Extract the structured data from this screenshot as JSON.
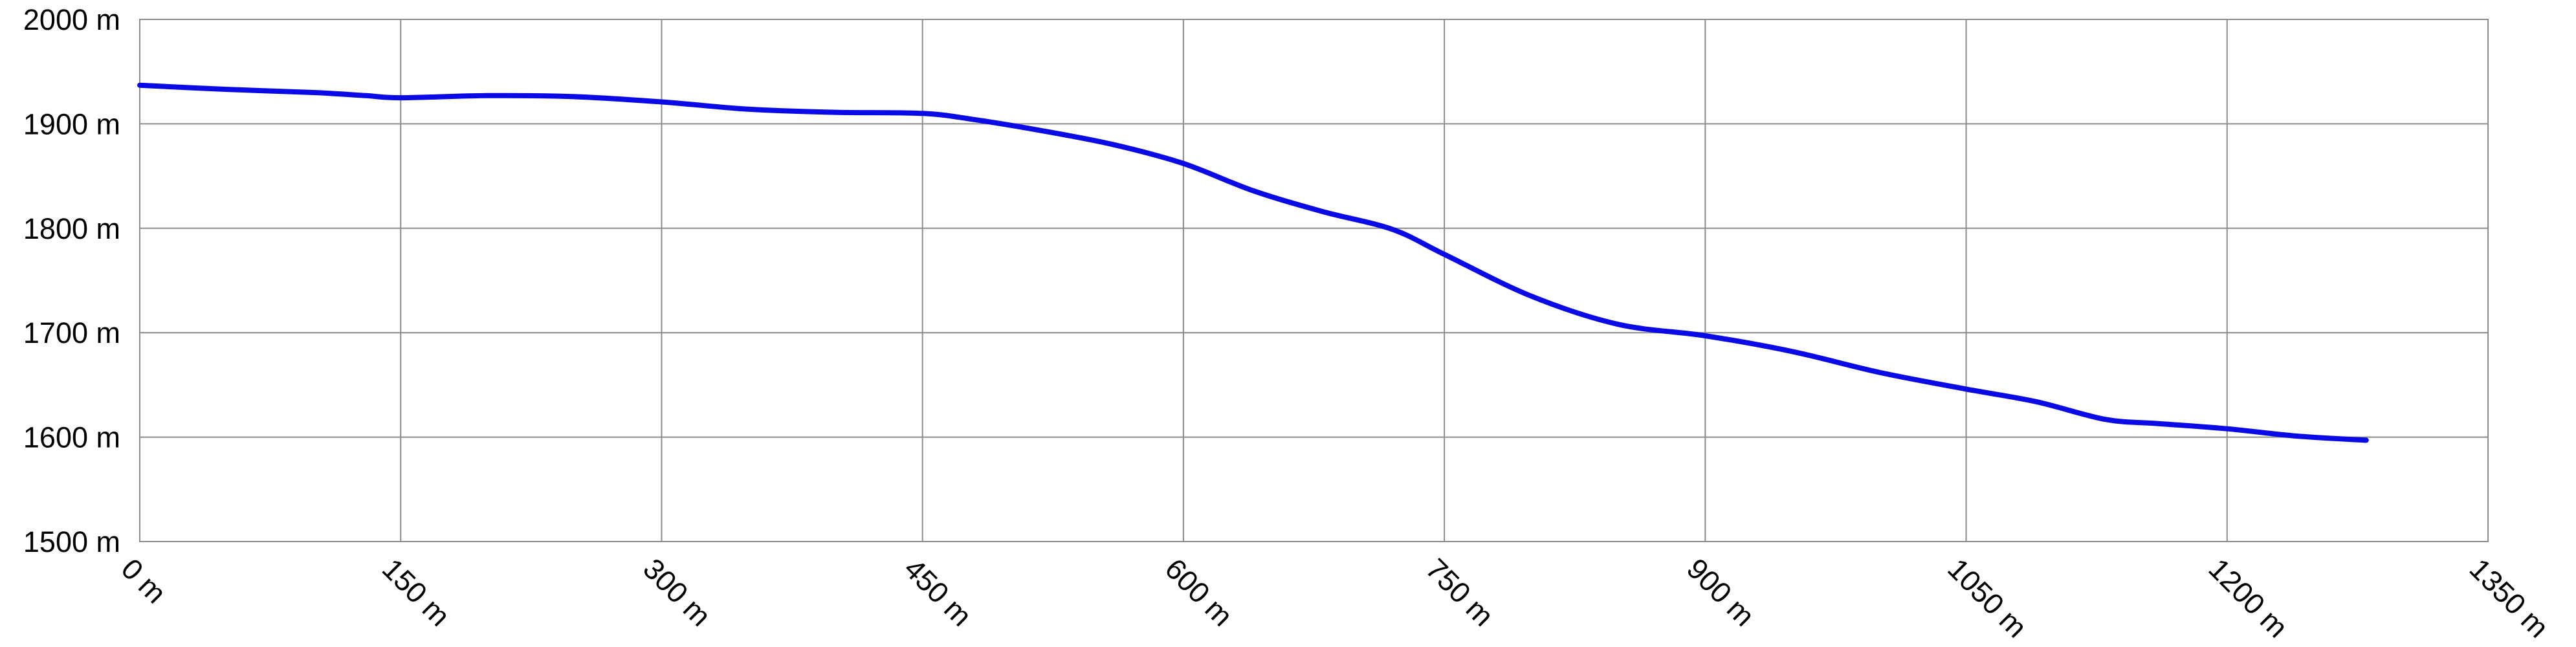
{
  "chart_data": {
    "type": "line",
    "title": "",
    "xlabel": "",
    "ylabel": "",
    "xlim": [
      0,
      1350
    ],
    "ylim": [
      1500,
      2000
    ],
    "grid": true,
    "x_ticks": [
      0,
      150,
      300,
      450,
      600,
      750,
      900,
      1050,
      1200,
      1350
    ],
    "y_ticks": [
      2000,
      1900,
      1800,
      1700,
      1600,
      1500
    ],
    "x_tick_labels": [
      "0 m",
      "150 m",
      "300 m",
      "450 m",
      "600 m",
      "750 m",
      "900 m",
      "1050 m",
      "1200 m",
      "1350 m"
    ],
    "y_tick_labels": [
      "2000 m",
      "1900 m",
      "1800 m",
      "1700 m",
      "1600 m",
      "1500 m"
    ],
    "colors": {
      "line": "#0a0ae6",
      "grid": "#8c8c8c"
    },
    "series": [
      {
        "x": [
          0,
          50,
          100,
          130,
          150,
          200,
          250,
          300,
          350,
          400,
          450,
          480,
          520,
          560,
          600,
          640,
          680,
          720,
          750,
          800,
          850,
          900,
          950,
          1000,
          1050,
          1090,
          1130,
          1160,
          1200,
          1240,
          1280
        ],
        "y": [
          1937,
          1933,
          1930,
          1927,
          1925,
          1927,
          1926,
          1921,
          1914,
          1911,
          1910,
          1904,
          1893,
          1880,
          1862,
          1836,
          1816,
          1799,
          1775,
          1735,
          1708,
          1697,
          1682,
          1662,
          1646,
          1634,
          1617,
          1613,
          1608,
          1601,
          1597
        ]
      }
    ]
  }
}
